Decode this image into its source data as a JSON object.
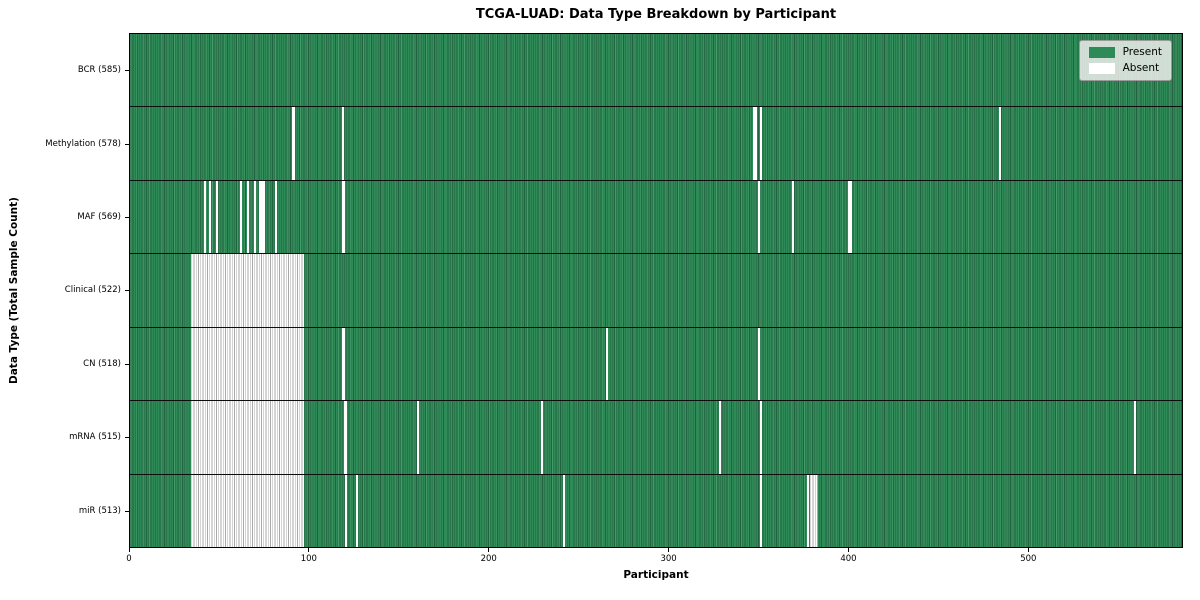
{
  "chart_data": {
    "type": "heatmap",
    "title": "TCGA-LUAD: Data Type Breakdown by Participant",
    "xlabel": "Participant",
    "ylabel": "Data Type (Total Sample Count)",
    "x_ticks": [
      0,
      100,
      200,
      300,
      400,
      500
    ],
    "x_max": 586,
    "total_participants": 585,
    "grid": false,
    "colors": {
      "present": "#2e8b57",
      "absent": "#ffffff"
    },
    "legend": {
      "position": "upper right",
      "entries": [
        {
          "label": "Present",
          "color": "#2e8b57"
        },
        {
          "label": "Absent",
          "color": "#ffffff"
        }
      ]
    },
    "rows": [
      {
        "label": "BCR (585)",
        "data_type": "BCR",
        "sample_count": 585,
        "absent_count": 0,
        "absent_ranges": []
      },
      {
        "label": "Methylation (578)",
        "data_type": "Methylation",
        "sample_count": 578,
        "absent_count": 7,
        "absent_ranges": [
          [
            90,
            92
          ],
          [
            118,
            119
          ],
          [
            347,
            349
          ],
          [
            351,
            352
          ],
          [
            484,
            485
          ]
        ]
      },
      {
        "label": "MAF (569)",
        "data_type": "MAF",
        "sample_count": 569,
        "absent_count": 16,
        "absent_ranges": [
          [
            41,
            42
          ],
          [
            44,
            45
          ],
          [
            48,
            49
          ],
          [
            61,
            62
          ],
          [
            65,
            66
          ],
          [
            69,
            70
          ],
          [
            72,
            75
          ],
          [
            81,
            82
          ],
          [
            118,
            120
          ],
          [
            350,
            351
          ],
          [
            369,
            370
          ],
          [
            400,
            402
          ]
        ]
      },
      {
        "label": "Clinical (522)",
        "data_type": "Clinical",
        "sample_count": 522,
        "absent_count": 63,
        "absent_ranges": [
          [
            34,
            97
          ]
        ]
      },
      {
        "label": "CN (518)",
        "data_type": "CN",
        "sample_count": 518,
        "absent_count": 67,
        "absent_ranges": [
          [
            34,
            97
          ],
          [
            118,
            120
          ],
          [
            265,
            266
          ],
          [
            350,
            351
          ]
        ]
      },
      {
        "label": "mRNA (515)",
        "data_type": "mRNA",
        "sample_count": 515,
        "absent_count": 70,
        "absent_ranges": [
          [
            34,
            97
          ],
          [
            119,
            121
          ],
          [
            160,
            161
          ],
          [
            229,
            230
          ],
          [
            328,
            329
          ],
          [
            351,
            352
          ],
          [
            559,
            560
          ]
        ]
      },
      {
        "label": "miR (513)",
        "data_type": "miR",
        "sample_count": 513,
        "absent_count": 72,
        "absent_ranges": [
          [
            34,
            97
          ],
          [
            120,
            121
          ],
          [
            126,
            127
          ],
          [
            241,
            242
          ],
          [
            351,
            352
          ],
          [
            377,
            378
          ],
          [
            379,
            383
          ]
        ]
      }
    ]
  }
}
